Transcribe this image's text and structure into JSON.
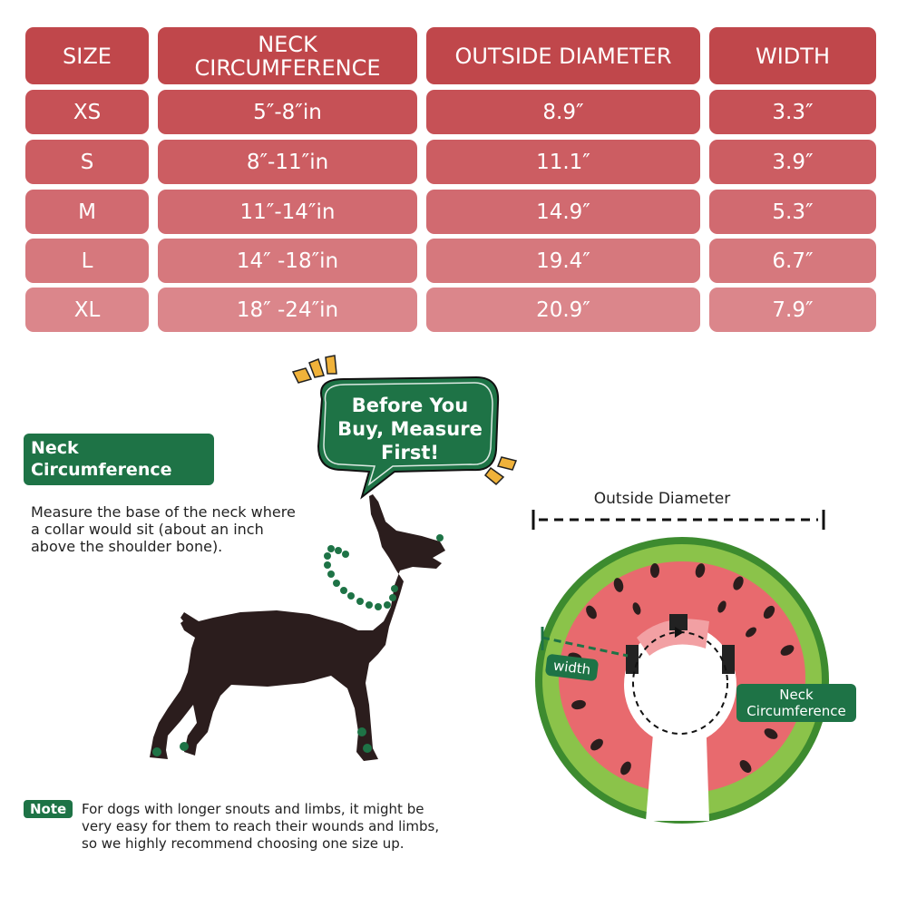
{
  "size_table": {
    "headers": [
      "SIZE",
      "NECK CIRCUMFERENCE",
      "OUTSIDE DIAMETER",
      "WIDTH"
    ],
    "header_neck_lines": [
      "NECK",
      "CIRCUMFERENCE"
    ],
    "rows": [
      {
        "size": "XS",
        "neck": "5″-8″in",
        "diameter": "8.9″",
        "width": "3.3″"
      },
      {
        "size": "S",
        "neck": "8″-11″in",
        "diameter": "11.1″",
        "width": "3.9″"
      },
      {
        "size": "M",
        "neck": "11″-14″in",
        "diameter": "14.9″",
        "width": "5.3″"
      },
      {
        "size": "L",
        "neck": "14″ -18″in",
        "diameter": "19.4″",
        "width": "6.7″"
      },
      {
        "size": "XL",
        "neck": "18″ -24″in",
        "diameter": "20.9″",
        "width": "7.9″"
      }
    ]
  },
  "speech_bubble": {
    "lines": [
      "Before You",
      "Buy, Measure",
      "First!"
    ]
  },
  "neck_section": {
    "tag_lines": [
      "Neck",
      "Circumference"
    ],
    "description_lines": [
      "Measure the base of the neck where",
      "a collar would sit (about an inch",
      "above the shoulder bone)."
    ]
  },
  "diagram": {
    "outside_diameter_label": "Outside Diameter",
    "width_label": "width",
    "neck_label_lines": [
      "Neck",
      "Circumference"
    ]
  },
  "note": {
    "tag": "Note",
    "lines": [
      "For dogs with longer snouts and limbs, it might be",
      "very easy for them to reach their wounds and limbs,",
      "so we highly recommend choosing one size up."
    ]
  },
  "colors": {
    "accent_green": "#1e7346",
    "table_red": "#c0474b",
    "watermelon_red": "#e86a6e",
    "rind_green": "#8bc34a"
  }
}
